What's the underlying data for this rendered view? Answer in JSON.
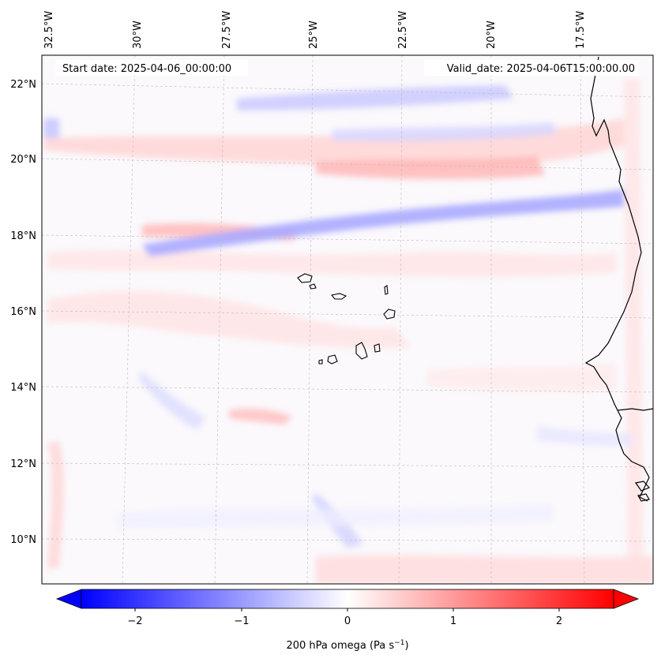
{
  "map": {
    "start_label": "Start date: 2025-04-06_00:00:00",
    "valid_label": "Valid_date: 2025-04-06T15:00:00.00",
    "lon_labels": [
      "32.5°W",
      "30°W",
      "27.5°W",
      "25°W",
      "22.5°W",
      "20°W",
      "17.5°W"
    ],
    "lat_labels": [
      "22°N",
      "20°N",
      "18°N",
      "16°N",
      "14°N",
      "12°N",
      "10°N"
    ],
    "field_name": "200 hPa omega",
    "colors": {
      "negative": "#0000ff",
      "zero": "#ffffff",
      "positive": "#ff0000",
      "coast": "#000000"
    }
  },
  "colorbar": {
    "label_text": "200 hPa omega (Pa s",
    "label_exp": "−1",
    "label_close": ")",
    "ticks": [
      "−2",
      "−1",
      "0",
      "1",
      "2"
    ],
    "range": [
      -2.6,
      2.6
    ]
  }
}
